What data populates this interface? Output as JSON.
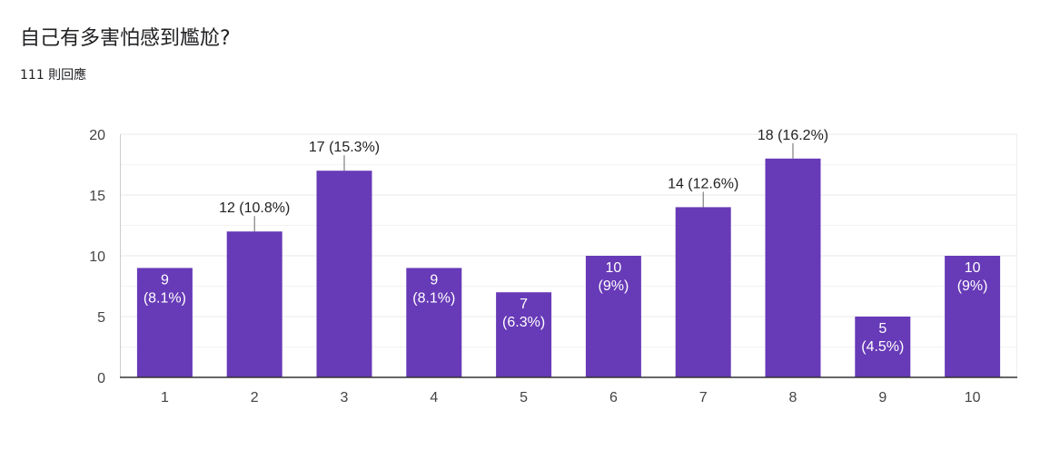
{
  "question": {
    "title": "自己有多害怕感到尷尬?",
    "responses": "111 則回應"
  },
  "colors": {
    "bar": "#673ab7",
    "grid": "#e8e8e8",
    "axis": "#333333",
    "text": "#444444"
  },
  "chart_data": {
    "type": "bar",
    "categories": [
      "1",
      "2",
      "3",
      "4",
      "5",
      "6",
      "7",
      "8",
      "9",
      "10"
    ],
    "values": [
      9,
      12,
      17,
      9,
      7,
      10,
      14,
      18,
      5,
      10
    ],
    "data_labels": [
      [
        "9",
        "(8.1%)"
      ],
      [
        "12 (10.8%)"
      ],
      [
        "17 (15.3%)"
      ],
      [
        "9",
        "(8.1%)"
      ],
      [
        "7",
        "(6.3%)"
      ],
      [
        "10",
        "(9%)"
      ],
      [
        "14 (12.6%)"
      ],
      [
        "18 (16.2%)"
      ],
      [
        "5",
        "(4.5%)"
      ],
      [
        "10",
        "(9%)"
      ]
    ],
    "label_outside": [
      false,
      true,
      true,
      false,
      false,
      false,
      true,
      true,
      false,
      false
    ],
    "ylim": [
      0,
      20
    ],
    "yticks": [
      0,
      5,
      10,
      15,
      20
    ],
    "minor_gridlines": true,
    "xlabel": "",
    "ylabel": ""
  }
}
